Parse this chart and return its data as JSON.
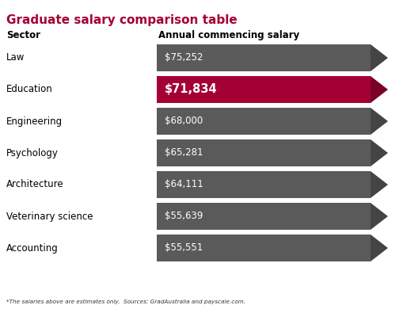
{
  "title": "Graduate salary comparison table",
  "title_color": "#A50034",
  "col_header_sector": "Sector",
  "col_header_salary": "Annual commencing salary",
  "sectors": [
    "Law",
    "Education",
    "Engineering",
    "Psychology",
    "Architecture",
    "Veterinary science",
    "Accounting"
  ],
  "salaries": [
    75252,
    71834,
    68000,
    65281,
    64111,
    55639,
    55551
  ],
  "salary_labels": [
    "$75,252",
    "$71,834",
    "$68,000",
    "$65,281",
    "$64,111",
    "$55,639",
    "$55,551"
  ],
  "highlight_index": 1,
  "bar_color_normal": "#5a5a5a",
  "bar_color_highlight": "#A50034",
  "arrow_color_normal": "#444444",
  "arrow_color_highlight": "#7a0026",
  "background_color": "#FFFFFF",
  "footnote": "*The salaries above are estimates only.  Sources: GradAustralia and payscale.com.",
  "fig_w": 5.09,
  "fig_h": 3.9,
  "dpi": 100
}
